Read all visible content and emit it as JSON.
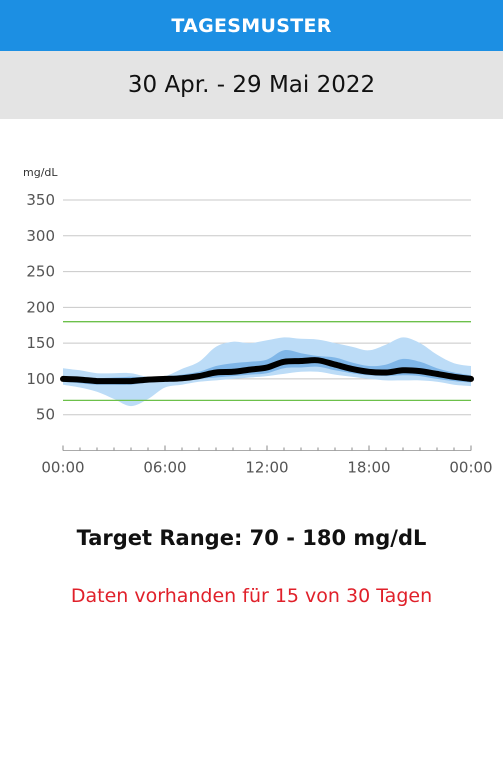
{
  "header": {
    "title": "TAGESMUSTER"
  },
  "date_range": "30 Apr. - 29 Mai 2022",
  "target_range_text": "Target Range: 70 - 180 mg/dL",
  "data_availability_text": "Daten vorhanden für 15 von 30 Tagen",
  "colors": {
    "header": "#1c8fe3",
    "median": "#000000",
    "band_outer": "#bcdcf7",
    "band_inner": "#7fb6e8",
    "target_lines": "#6cc04a",
    "availability_text": "#e0202a"
  },
  "chart_data": {
    "type": "area",
    "ylabel": "mg/dL",
    "ylim": [
      0,
      350
    ],
    "yticks": [
      50,
      100,
      150,
      200,
      250,
      300,
      350
    ],
    "xlim": [
      0,
      24
    ],
    "xtick_labels": [
      "00:00",
      "06:00",
      "12:00",
      "18:00",
      "00:00"
    ],
    "xtick_hours": [
      0,
      6,
      12,
      18,
      24
    ],
    "target_range": [
      70,
      180
    ],
    "hours": [
      0,
      1,
      2,
      3,
      4,
      5,
      6,
      7,
      8,
      9,
      10,
      11,
      12,
      13,
      14,
      15,
      16,
      17,
      18,
      19,
      20,
      21,
      22,
      23,
      24
    ],
    "series": [
      {
        "name": "median",
        "values": [
          100,
          99,
          97,
          97,
          97,
          99,
          100,
          101,
          104,
          109,
          110,
          113,
          116,
          124,
          125,
          126,
          120,
          114,
          110,
          109,
          112,
          111,
          107,
          103,
          100
        ]
      },
      {
        "name": "p25",
        "values": [
          96,
          94,
          92,
          92,
          92,
          95,
          96,
          97,
          100,
          102,
          104,
          106,
          108,
          115,
          116,
          117,
          112,
          108,
          105,
          104,
          105,
          104,
          100,
          97,
          95
        ]
      },
      {
        "name": "p75",
        "values": [
          104,
          103,
          101,
          102,
          103,
          102,
          103,
          106,
          110,
          118,
          122,
          124,
          127,
          140,
          136,
          132,
          130,
          123,
          118,
          120,
          128,
          124,
          115,
          109,
          105
        ]
      },
      {
        "name": "p10",
        "values": [
          92,
          88,
          82,
          72,
          62,
          72,
          88,
          92,
          96,
          98,
          100,
          102,
          104,
          107,
          110,
          110,
          106,
          103,
          100,
          98,
          98,
          98,
          96,
          92,
          90
        ]
      },
      {
        "name": "p90",
        "values": [
          115,
          112,
          108,
          108,
          108,
          103,
          104,
          114,
          124,
          145,
          152,
          150,
          154,
          158,
          156,
          155,
          150,
          145,
          140,
          148,
          158,
          150,
          134,
          122,
          118
        ]
      }
    ]
  }
}
